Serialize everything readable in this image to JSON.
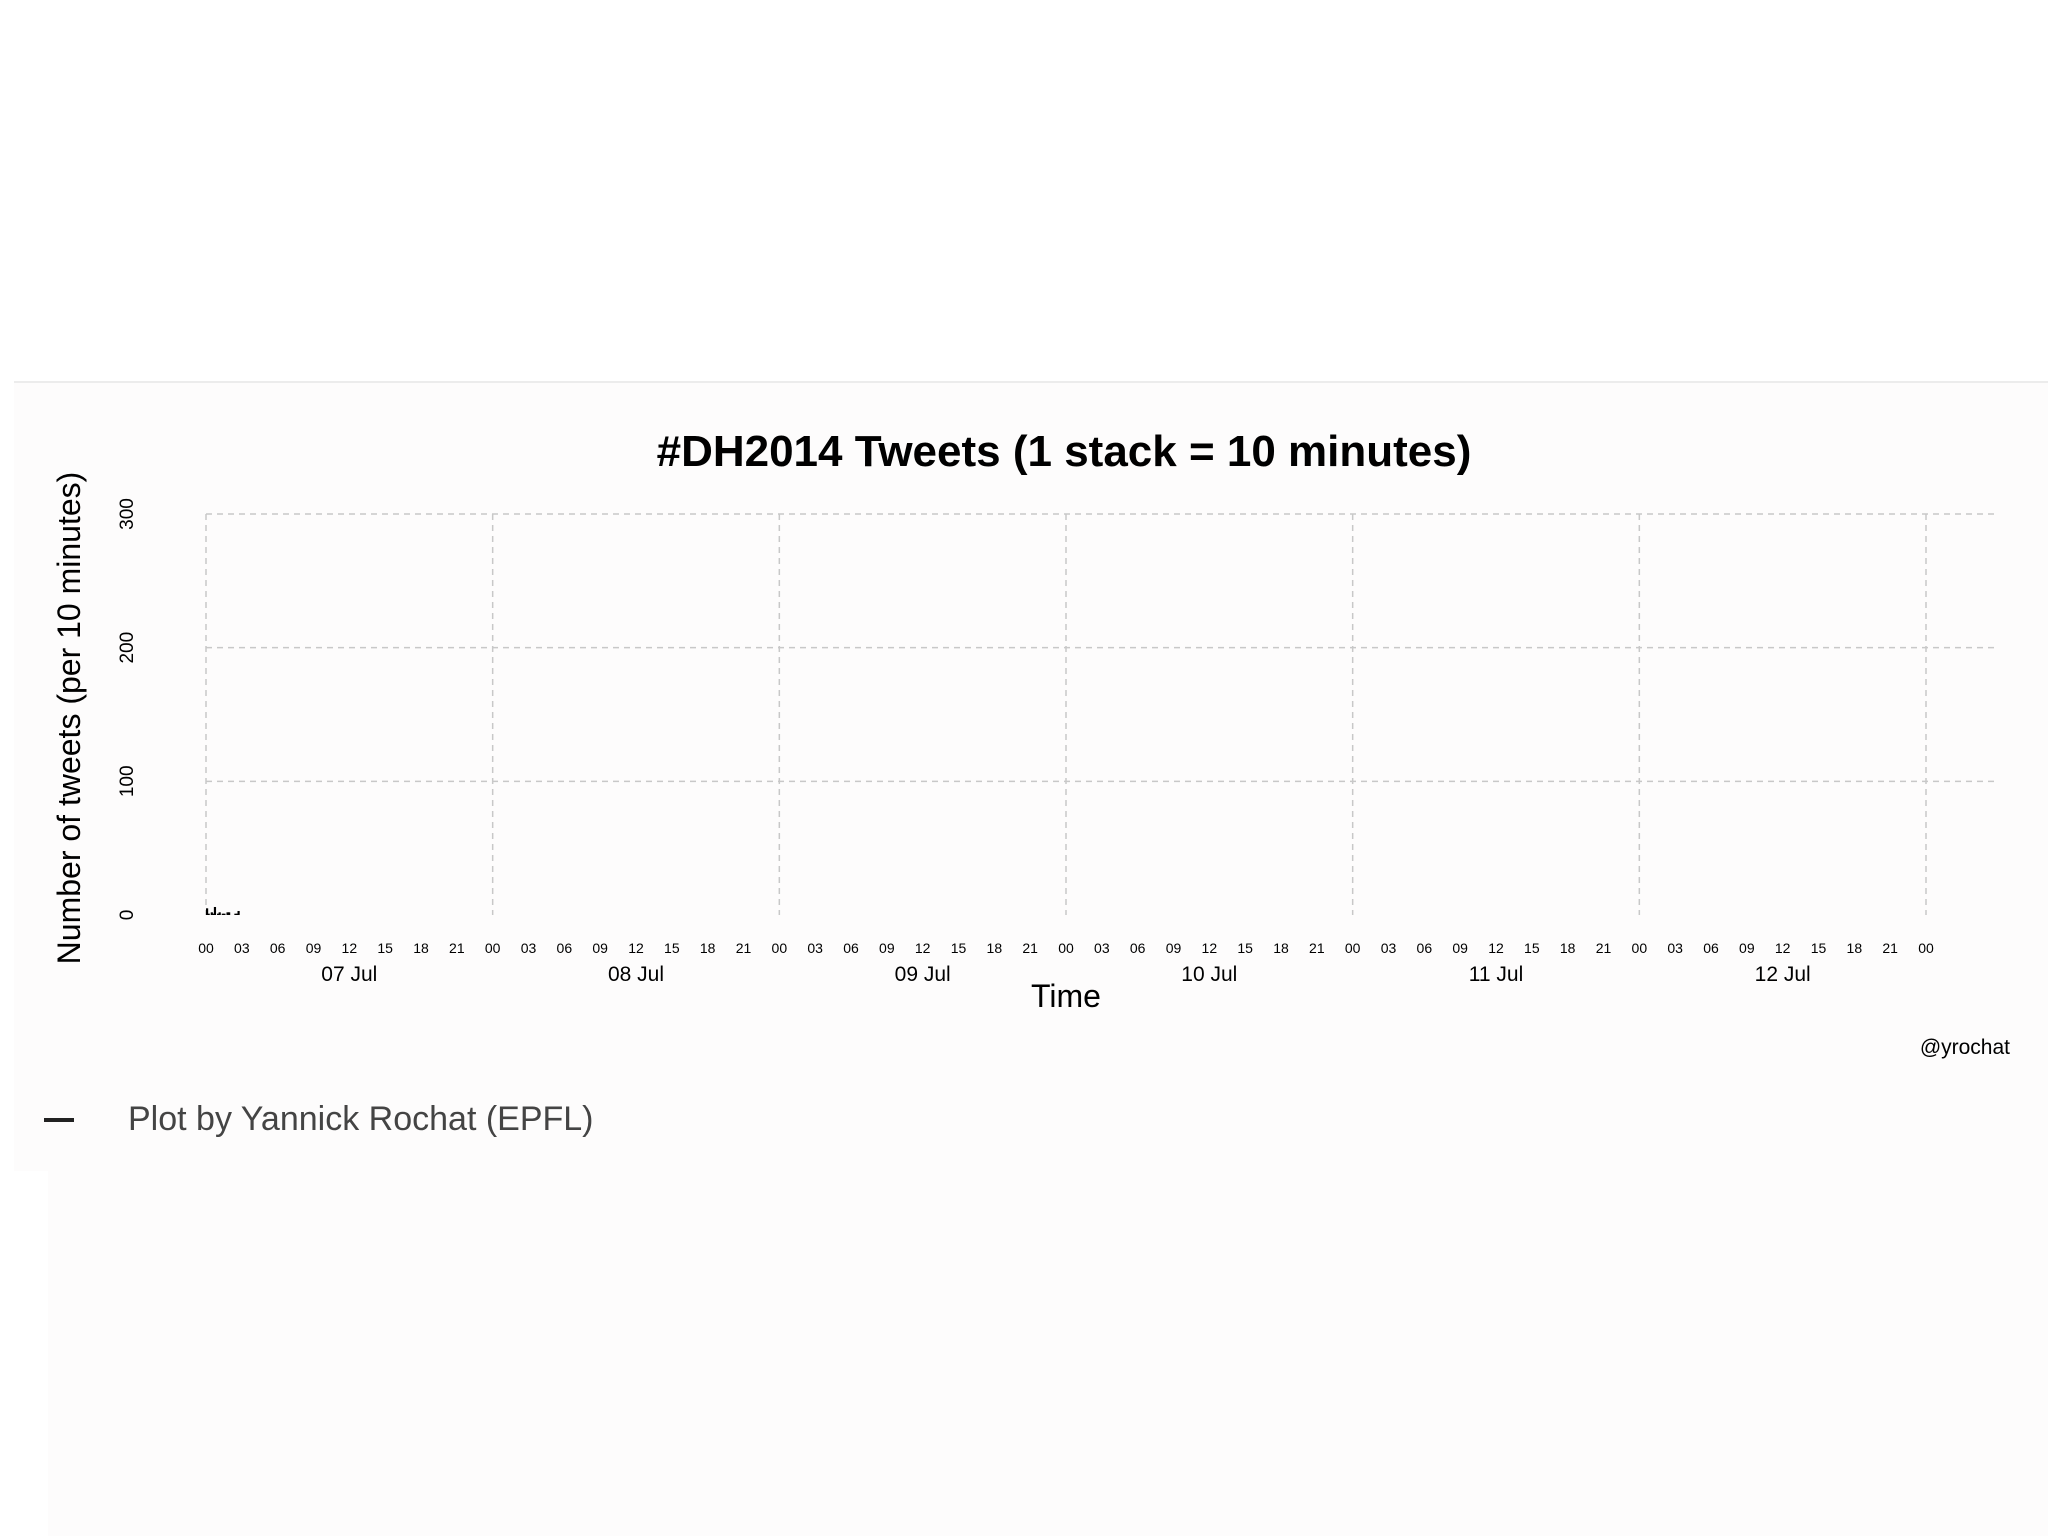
{
  "caption": {
    "text": "Plot by Yannick Rochat (EPFL)"
  },
  "chart_data": {
    "type": "bar",
    "title": "#DH2014 Tweets (1 stack = 10 minutes)",
    "xlabel": "Time",
    "ylabel": "Number of tweets (per 10 minutes)",
    "credit": "@yrochat",
    "bin_minutes": 10,
    "ylim": [
      0,
      300
    ],
    "y_ticks": [
      0,
      100,
      200,
      300
    ],
    "x_range": [
      "07 Jul 00:00",
      "13 Jul 00:00"
    ],
    "hour_ticks": [
      "00",
      "03",
      "06",
      "09",
      "12",
      "15",
      "18",
      "21",
      "00",
      "03",
      "06",
      "09",
      "12",
      "15",
      "18",
      "21",
      "00",
      "03",
      "06",
      "09",
      "12",
      "15",
      "18",
      "21",
      "00",
      "03",
      "06",
      "09",
      "12",
      "15",
      "18",
      "21",
      "00",
      "03",
      "06",
      "09",
      "12",
      "15",
      "18",
      "21",
      "00",
      "03",
      "06",
      "09",
      "12",
      "15",
      "18",
      "21",
      "00"
    ],
    "day_labels": [
      "07 Jul",
      "08 Jul",
      "09 Jul",
      "10 Jul",
      "11 Jul",
      "12 Jul"
    ],
    "grid": true,
    "color": "#000000",
    "values": [
      5,
      1,
      0,
      2,
      1,
      6,
      0,
      1,
      2,
      0,
      1,
      1,
      0,
      2,
      2,
      0,
      0,
      0,
      1,
      1,
      3,
      0,
      0,
      0,
      0,
      0,
      0,
      0,
      0,
      0,
      0,
      0,
      0,
      0,
      0,
      0,
      0,
      0,
      0,
      0,
      0,
      0,
      0,
      0,
      0,
      0,
      0,
      0,
      0,
      0,
      0,
      0,
      0,
      0,
      0,
      0,
      0,
      0,
      0,
      0,
      0,
      0,
      0,
      0,
      0,
      0,
      0,
      0,
      0,
      0,
      0,
      0,
      0,
      0,
      0,
      0,
      0,
      0,
      0,
      0,
      0,
      0,
      0,
      0,
      0,
      0,
      0,
      0,
      0,
      0,
      0,
      0,
      0,
      0,
      0,
      0,
      0,
      0,
      0,
      0,
      0,
      0,
      0,
      0,
      0,
      0,
      0,
      0,
      0,
      0,
      0,
      0,
      0,
      0,
      0,
      0,
      0,
      0,
      0,
      0,
      0,
      0,
      0,
      0,
      0,
      0,
      0,
      0,
      0,
      0,
      0,
      0,
      0,
      0,
      0,
      0,
      0,
      0,
      0,
      0,
      0,
      0,
      0,
      0,
      0,
      0,
      0,
      0,
      0,
      0,
      0,
      0,
      0,
      0,
      0,
      0,
      0,
      0,
      0,
      0,
      0,
      0,
      0,
      0,
      0,
      0,
      0,
      0,
      0,
      0,
      0,
      0,
      0,
      0,
      0,
      0,
      0,
      0,
      0,
      0,
      0,
      0,
      0,
      0,
      0,
      0,
      0,
      0,
      0,
      0,
      0,
      0,
      0,
      0,
      0,
      0,
      0,
      0,
      0,
      0,
      0,
      0,
      0,
      0,
      0,
      0,
      0,
      0,
      0,
      0,
      0,
      0,
      0,
      0,
      0,
      0,
      0,
      0,
      0,
      0,
      0,
      0,
      0,
      0,
      0,
      0,
      0,
      0,
      0,
      0,
      0,
      0,
      0,
      0,
      0,
      0,
      0,
      0,
      0,
      0,
      0,
      0,
      0,
      0,
      0,
      0,
      0,
      0,
      0,
      0,
      0,
      0,
      0,
      0,
      0,
      0,
      0,
      0,
      0,
      0,
      0,
      0,
      0,
      0,
      0,
      0,
      0,
      0,
      0,
      0,
      0,
      0,
      0,
      0,
      0,
      0,
      0,
      0,
      0,
      0,
      0,
      0,
      0,
      0,
      0,
      0,
      0,
      0,
      0,
      0,
      0,
      0,
      0,
      0,
      0,
      0,
      0,
      0,
      0,
      0,
      0,
      0,
      0,
      0,
      0,
      0,
      0,
      0,
      0,
      0,
      0,
      0,
      0,
      0,
      0,
      0,
      0,
      0,
      0,
      0,
      0,
      0,
      0,
      0,
      0,
      0,
      0,
      0,
      0,
      0,
      0,
      0,
      0,
      0,
      0,
      0,
      0,
      0,
      0,
      0,
      0,
      0,
      0,
      0,
      0,
      0,
      0,
      0,
      0,
      0,
      0,
      0,
      0,
      0,
      0,
      0,
      0,
      0,
      0,
      0,
      0,
      0,
      0,
      0,
      0,
      0,
      0,
      0,
      0,
      0,
      0,
      0,
      0,
      0,
      0,
      0,
      0,
      0,
      0,
      0,
      0,
      0,
      0,
      0,
      0,
      0,
      0,
      0,
      0,
      0,
      0,
      0,
      0,
      0,
      0,
      0,
      0,
      0,
      0,
      0,
      0,
      0,
      0,
      0,
      0,
      0,
      0,
      0,
      0,
      0,
      0,
      0,
      0,
      0,
      0,
      0,
      0,
      0,
      0,
      0,
      0,
      0,
      0,
      0,
      0,
      0,
      0,
      0,
      0,
      0,
      0,
      0,
      0,
      0,
      0,
      0,
      0,
      0,
      0,
      0,
      0,
      0,
      0,
      0,
      0,
      0,
      0,
      0,
      0,
      0,
      0,
      0,
      0,
      0,
      0,
      0,
      0,
      0,
      0,
      0,
      0,
      0,
      0,
      0,
      0,
      0,
      0,
      0,
      0,
      0,
      0,
      0,
      0,
      0,
      0,
      0,
      0,
      0,
      0,
      0,
      0,
      0,
      0,
      0,
      0,
      0,
      0,
      0,
      0,
      0,
      0,
      0,
      0,
      0,
      0,
      0,
      0,
      0,
      0,
      0,
      0,
      0,
      0,
      0,
      0,
      0,
      0,
      0,
      0,
      0,
      0,
      0,
      0,
      0,
      0,
      0,
      0,
      0,
      0,
      0,
      0,
      0,
      0,
      0,
      0,
      0,
      0,
      0,
      0,
      0,
      0,
      0,
      0,
      0,
      0,
      0,
      0,
      0,
      0,
      0,
      0,
      0,
      0,
      0,
      0,
      0,
      0,
      0,
      0,
      0,
      0,
      0,
      0,
      0,
      0,
      0,
      0,
      0,
      0,
      0,
      0,
      0,
      0,
      0,
      0,
      0,
      0,
      0,
      0,
      0,
      0,
      0,
      0,
      0,
      0,
      0,
      0,
      0,
      0,
      0,
      0,
      0,
      0,
      0,
      0,
      0,
      0,
      0,
      0,
      0,
      0,
      0,
      0,
      0,
      0,
      0,
      0,
      0,
      0,
      0,
      0,
      0,
      0,
      0,
      0,
      0,
      0,
      0,
      0,
      0,
      0,
      0,
      0,
      0,
      0,
      0,
      0,
      0,
      0,
      0,
      0,
      0,
      0,
      0,
      0,
      0,
      0,
      0,
      0,
      0,
      0,
      0,
      0,
      0,
      0,
      0,
      0,
      0,
      0,
      0,
      0,
      0,
      0,
      0,
      0,
      0,
      0,
      0,
      0,
      0,
      0,
      0,
      0,
      0,
      0,
      0,
      0,
      0,
      0,
      0,
      0,
      0,
      0,
      0,
      0,
      0,
      0,
      0,
      0,
      0,
      0,
      0,
      0,
      0,
      0,
      0,
      0,
      0,
      0,
      0,
      0,
      0,
      0,
      0,
      0,
      0,
      0,
      0,
      0,
      0,
      0,
      0,
      0,
      0,
      0,
      0,
      0,
      0,
      0,
      0,
      0,
      0,
      0,
      0,
      0,
      0,
      0,
      0,
      0,
      0,
      0,
      0,
      0,
      0,
      0,
      0,
      0,
      0,
      0,
      0,
      0,
      0,
      0,
      0,
      0,
      0,
      0,
      0,
      0,
      0,
      0,
      0,
      0,
      0,
      0,
      0,
      0,
      0,
      0,
      0,
      0,
      0,
      0,
      0,
      0,
      0,
      0,
      0,
      0,
      0,
      0,
      0,
      0,
      0,
      0,
      0,
      0,
      0,
      0,
      0,
      0,
      0,
      0,
      0,
      0,
      0,
      0,
      0,
      0,
      0,
      0,
      0,
      0,
      0,
      0,
      0,
      0,
      0,
      0,
      0,
      0,
      0,
      0,
      0,
      0,
      0,
      0,
      0,
      0,
      0,
      0,
      0,
      0,
      0,
      0,
      0,
      0,
      0,
      0,
      0,
      0,
      0,
      0,
      0,
      0,
      0,
      0,
      0,
      0,
      0,
      0,
      0,
      0,
      0,
      0,
      0,
      0,
      0,
      0,
      0,
      0,
      0,
      0,
      0,
      0,
      0,
      0,
      0,
      0,
      0,
      0,
      0,
      0,
      0,
      0,
      0,
      0,
      0,
      0,
      0,
      0,
      0,
      0,
      0,
      0,
      0,
      0,
      0,
      0,
      0,
      0,
      0,
      0,
      0,
      0,
      0,
      0,
      0,
      0,
      0,
      0,
      0,
      0,
      0,
      0,
      0,
      0,
      0,
      0,
      0,
      0,
      0,
      0,
      0,
      0,
      0,
      0,
      0,
      0,
      0,
      0,
      0,
      0,
      0,
      0,
      0,
      0,
      0,
      0,
      0,
      0,
      0,
      0,
      0,
      0,
      0,
      0,
      0,
      0,
      0,
      0,
      0,
      0,
      0,
      0,
      0,
      0,
      0,
      0,
      0,
      0,
      0,
      0,
      0,
      0,
      0,
      0,
      0,
      0,
      0,
      0,
      0,
      0,
      0,
      0,
      0,
      0,
      0,
      0,
      0,
      0,
      0,
      0,
      0,
      0,
      0,
      0,
      0,
      0,
      0,
      0,
      0,
      0,
      0,
      0,
      0,
      0,
      0,
      0,
      0,
      0,
      0,
      0,
      0,
      0,
      0,
      0,
      0,
      0,
      0,
      0,
      0,
      0,
      0,
      0,
      0,
      0,
      0,
      0,
      0,
      0,
      0,
      0,
      0,
      0,
      0,
      0,
      0,
      0,
      0,
      0,
      0,
      0,
      0,
      0,
      0,
      0,
      0,
      0,
      0,
      0,
      0,
      0,
      0,
      0,
      0,
      0,
      0,
      0,
      0,
      0,
      0,
      0,
      0,
      0,
      0,
      0,
      0,
      0,
      0,
      0,
      0,
      0,
      0,
      0,
      0,
      0,
      0,
      0,
      0,
      0,
      0,
      0,
      0,
      0,
      0,
      0,
      0,
      0,
      0,
      0,
      0,
      0,
      0,
      0,
      0,
      0,
      0,
      0,
      0,
      0,
      0,
      0,
      0,
      0,
      0,
      0,
      0,
      0,
      0,
      0,
      0,
      0,
      0,
      0,
      0,
      0,
      0,
      0,
      0,
      0,
      0,
      0,
      0,
      0,
      0,
      0,
      0,
      0,
      0,
      0,
      0,
      0,
      0,
      0,
      0,
      0,
      0,
      0,
      0,
      0,
      0,
      0,
      0,
      0,
      0,
      0,
      0,
      0,
      0,
      0,
      0
    ]
  }
}
